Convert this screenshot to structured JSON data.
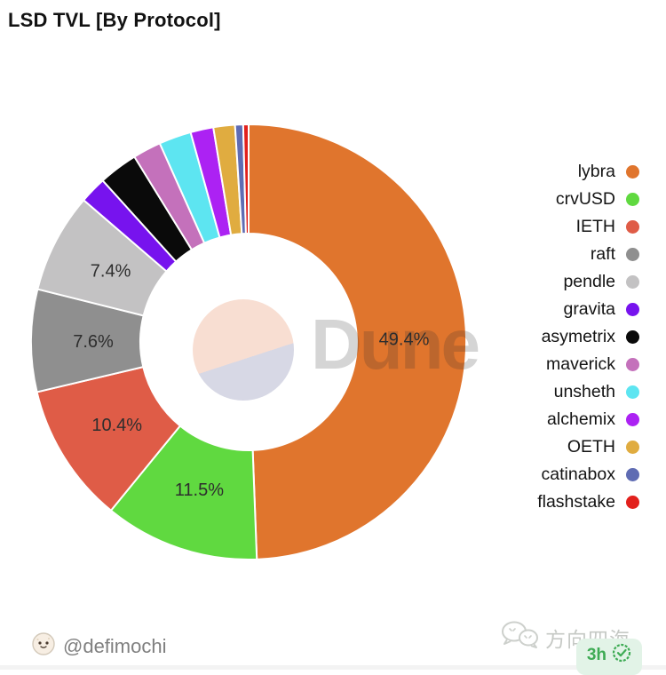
{
  "chart_data": {
    "type": "donut",
    "title": "LSD TVL [By Protocol]",
    "unit": "%",
    "legend_position": "right",
    "start_angle_deg": 0,
    "direction": "clockwise",
    "donut_hole_ratio": 0.5,
    "slices": [
      {
        "label": "lybra",
        "value": 49.4,
        "color": "#E0752D",
        "data_label": "49.4%"
      },
      {
        "label": "crvUSD",
        "value": 11.5,
        "color": "#60D940",
        "data_label": "11.5%"
      },
      {
        "label": "IETH",
        "value": 10.4,
        "color": "#DF5C47",
        "data_label": "10.4%"
      },
      {
        "label": "raft",
        "value": 7.6,
        "color": "#8F8F8F",
        "data_label": "7.6%"
      },
      {
        "label": "pendle",
        "value": 7.4,
        "color": "#C3C2C3",
        "data_label": "7.4%"
      },
      {
        "label": "gravita",
        "value": 2.0,
        "color": "#7713EE",
        "data_label": null
      },
      {
        "label": "asymetrix",
        "value": 2.9,
        "color": "#0A0A0A",
        "data_label": null
      },
      {
        "label": "maverick",
        "value": 2.1,
        "color": "#C471BB",
        "data_label": null
      },
      {
        "label": "unsheth",
        "value": 2.4,
        "color": "#5DE5F1",
        "data_label": null
      },
      {
        "label": "alchemix",
        "value": 1.7,
        "color": "#AC22F3",
        "data_label": null
      },
      {
        "label": "OETH",
        "value": 1.6,
        "color": "#E0AC40",
        "data_label": null
      },
      {
        "label": "catinabox",
        "value": 0.6,
        "color": "#5F6CB3",
        "data_label": null
      },
      {
        "label": "flashstake",
        "value": 0.4,
        "color": "#E2201C",
        "data_label": null
      }
    ]
  },
  "watermark": {
    "wordmark": "Dune",
    "logo_icon": "dune-logo-icon",
    "logo_top_color": "#F8DED2",
    "logo_bottom_color": "#D7D8E5"
  },
  "footer": {
    "handle": "@defimochi",
    "avatar_icon": "mochi-face-icon"
  },
  "stamp": {
    "brand_name": "方向四海",
    "brand_icon": "wechat-bubbles-icon",
    "badge_time": "3h",
    "badge_icon": "verified-seal-icon",
    "badge_color": "#3EAB54",
    "badge_bg": "#E2F3E7"
  }
}
